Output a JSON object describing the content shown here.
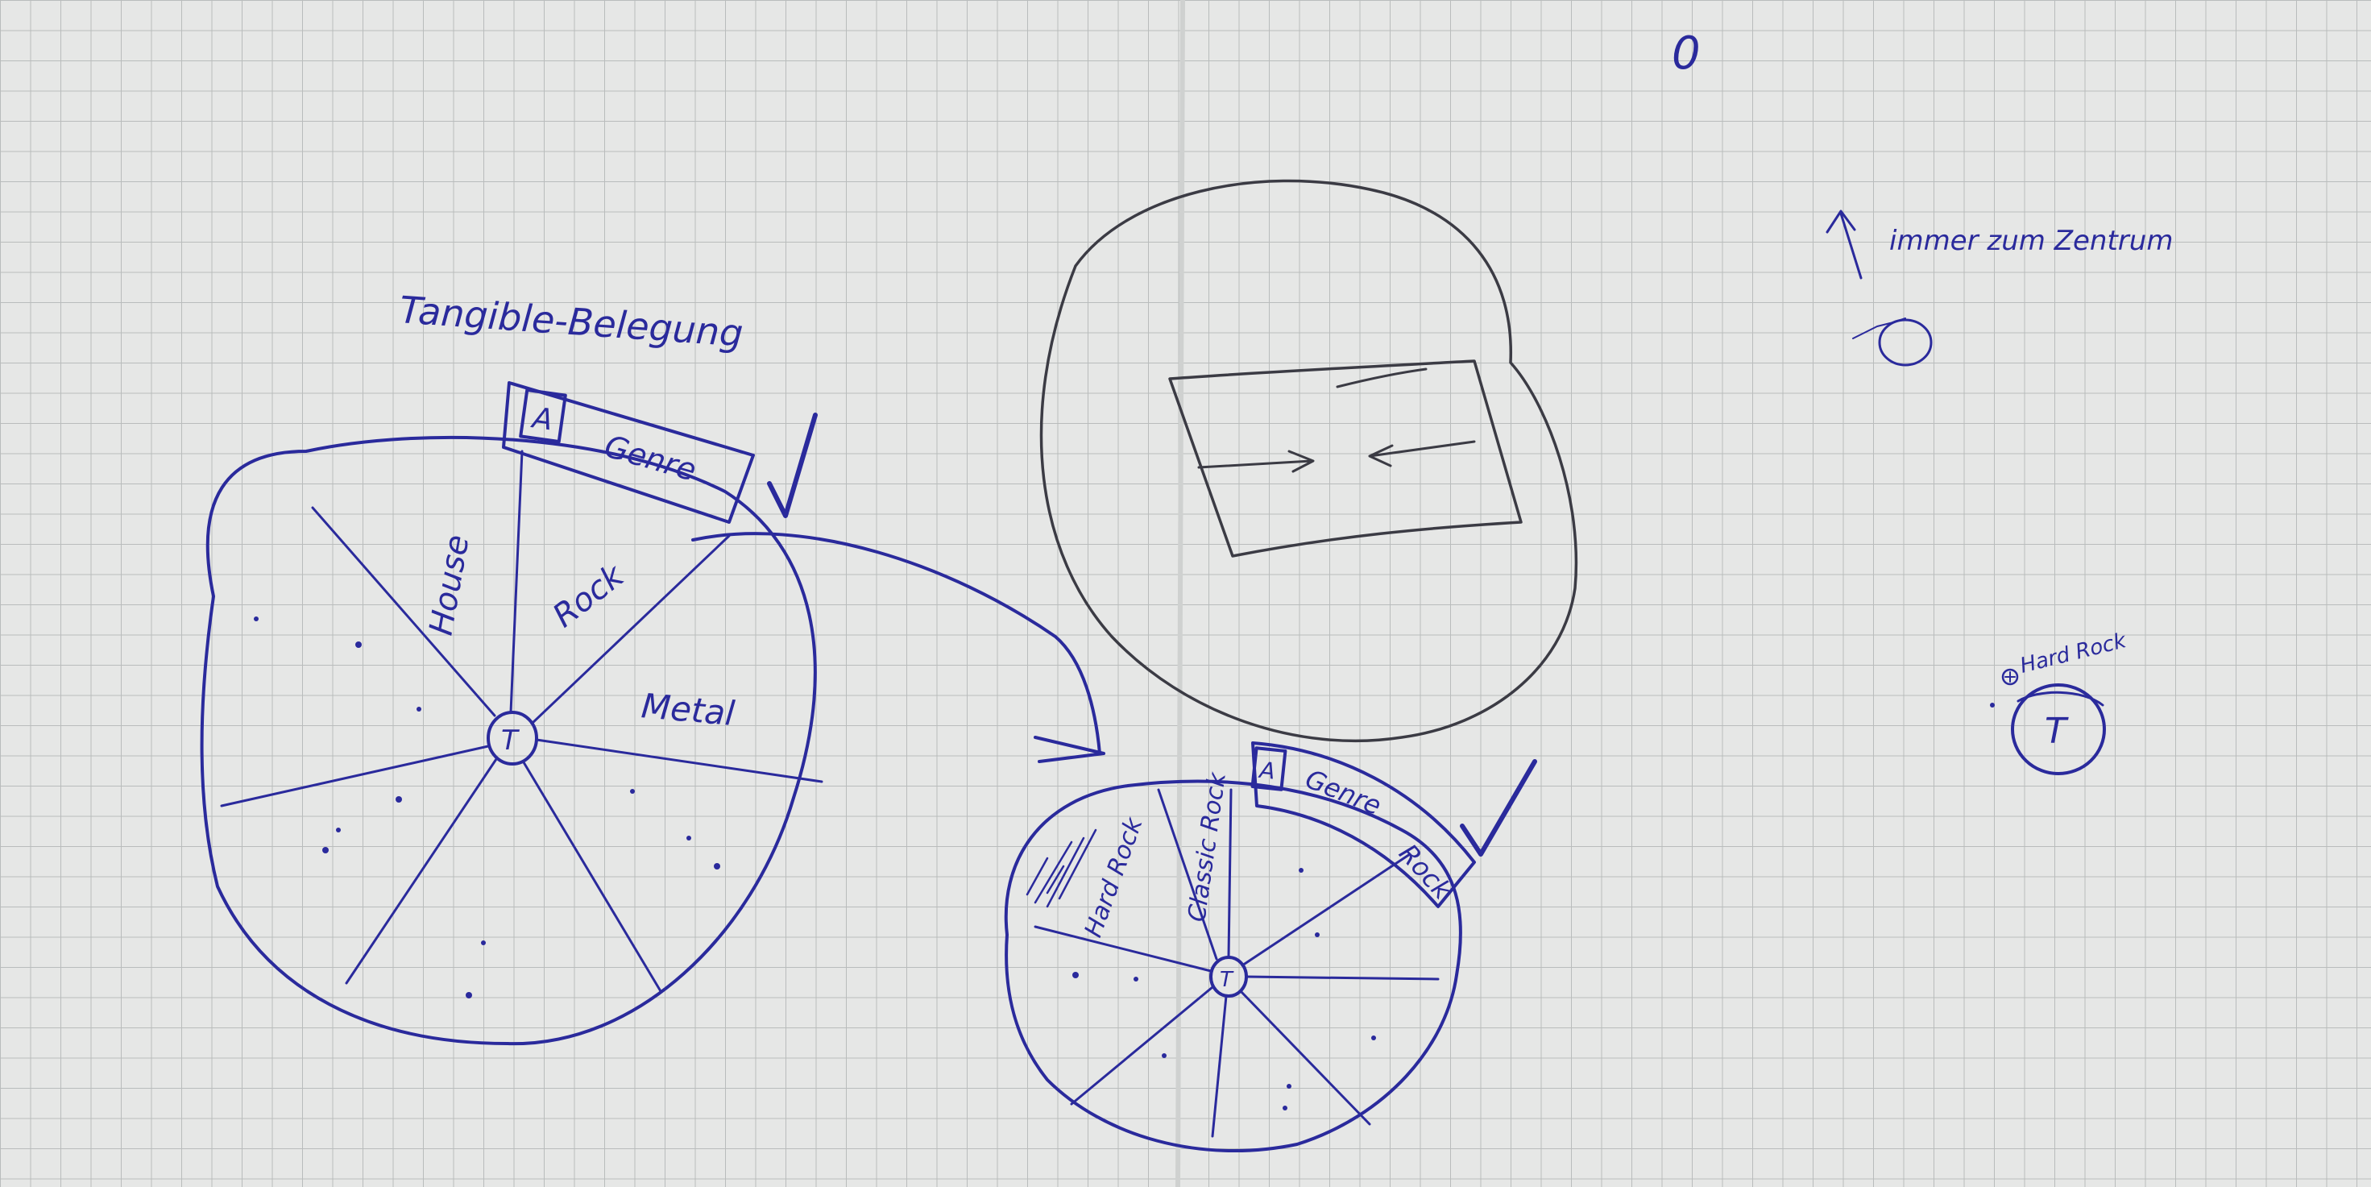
{
  "title": "Tangible-Belegung",
  "wheel_large": {
    "center_label": "T",
    "breadcrumb_icon": "A",
    "breadcrumb_label": "Genre",
    "segments": [
      "House",
      "Rock",
      "Metal"
    ]
  },
  "wheel_small": {
    "center_label": "T",
    "breadcrumb_icon": "A",
    "breadcrumb_label": "Genre",
    "breadcrumb_sub": "Rock",
    "segments": [
      "Hard Rock",
      "Classic Rock"
    ]
  },
  "note_center": "immer zum Zentrum",
  "note_hard_rock": "Hard Rock",
  "note_tangible_label": "T",
  "top_mark": "0",
  "colors": {
    "paper": "#e6e7e6",
    "grid": "#b9bcbc",
    "ink_blue": "#2a2a9c",
    "pencil": "#3b3b44"
  }
}
